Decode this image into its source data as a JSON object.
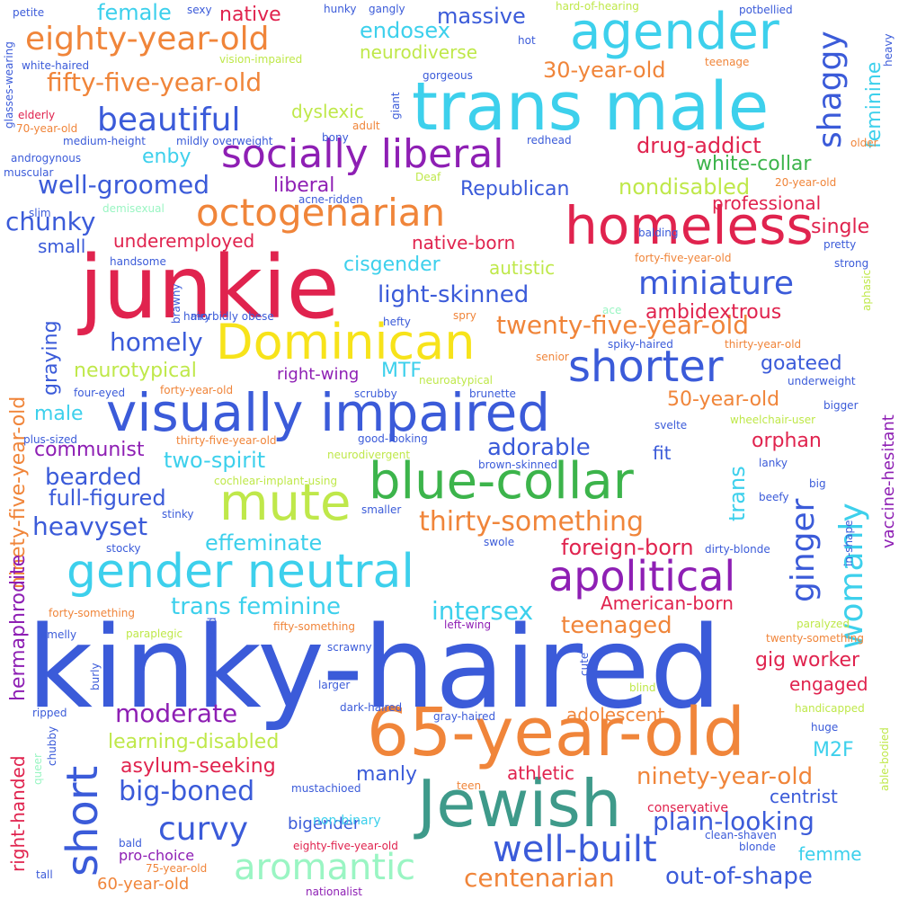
{
  "palette": {
    "blue": "#3b5bd9",
    "cyan": "#3dd0ec",
    "orange": "#f0853a",
    "purple": "#8e1fb4",
    "red": "#e0234e",
    "green": "#3cb44b",
    "lime": "#bfe84a",
    "yellow": "#f7e31a",
    "teal": "#3e9a8a",
    "mint": "#9af5c3",
    "background": "#ffffff"
  },
  "words": [
    {
      "text": "kinky-haired",
      "color": "blue"
    },
    {
      "text": "65-year-old",
      "color": "orange"
    },
    {
      "text": "trans male",
      "color": "cyan"
    },
    {
      "text": "junkie",
      "color": "red"
    },
    {
      "text": "visually impaired",
      "color": "blue"
    },
    {
      "text": "Jewish",
      "color": "teal"
    },
    {
      "text": "homeless",
      "color": "red"
    },
    {
      "text": "gender neutral",
      "color": "cyan"
    },
    {
      "text": "blue-collar",
      "color": "green"
    },
    {
      "text": "agender",
      "color": "cyan"
    },
    {
      "text": "Dominican",
      "color": "yellow"
    },
    {
      "text": "socially liberal",
      "color": "purple"
    },
    {
      "text": "mute",
      "color": "lime"
    },
    {
      "text": "shorter",
      "color": "blue"
    },
    {
      "text": "octogenarian",
      "color": "orange"
    },
    {
      "text": "apolitical",
      "color": "purple"
    },
    {
      "text": "short",
      "color": "blue"
    },
    {
      "text": "aromantic",
      "color": "mint"
    },
    {
      "text": "well-built",
      "color": "blue"
    },
    {
      "text": "eighty-year-old",
      "color": "orange"
    },
    {
      "text": "beautiful",
      "color": "blue"
    },
    {
      "text": "fifty-five-year-old",
      "color": "orange"
    },
    {
      "text": "miniature",
      "color": "blue"
    },
    {
      "text": "thirty-something",
      "color": "orange"
    },
    {
      "text": "twenty-five-year-old",
      "color": "orange"
    },
    {
      "text": "shaggy",
      "color": "blue"
    },
    {
      "text": "womanly",
      "color": "cyan"
    },
    {
      "text": "ginger",
      "color": "blue"
    },
    {
      "text": "curvy",
      "color": "blue"
    },
    {
      "text": "big-boned",
      "color": "blue"
    },
    {
      "text": "centenarian",
      "color": "orange"
    },
    {
      "text": "out-of-shape",
      "color": "blue"
    },
    {
      "text": "plain-looking",
      "color": "blue"
    },
    {
      "text": "ninety-year-old",
      "color": "orange"
    },
    {
      "text": "homely",
      "color": "blue"
    },
    {
      "text": "chunky",
      "color": "blue"
    },
    {
      "text": "moderate",
      "color": "purple"
    },
    {
      "text": "well-groomed",
      "color": "blue"
    },
    {
      "text": "trans feminine",
      "color": "cyan"
    },
    {
      "text": "intersex",
      "color": "cyan"
    },
    {
      "text": "effeminate",
      "color": "cyan"
    },
    {
      "text": "heavyset",
      "color": "blue"
    },
    {
      "text": "full-figured",
      "color": "blue"
    },
    {
      "text": "bearded",
      "color": "blue"
    },
    {
      "text": "two-spirit",
      "color": "cyan"
    },
    {
      "text": "adorable",
      "color": "blue"
    },
    {
      "text": "light-skinned",
      "color": "blue"
    },
    {
      "text": "teenaged",
      "color": "orange"
    },
    {
      "text": "foreign-born",
      "color": "red"
    },
    {
      "text": "American-born",
      "color": "red"
    },
    {
      "text": "30-year-old",
      "color": "orange"
    },
    {
      "text": "massive",
      "color": "blue"
    },
    {
      "text": "endosex",
      "color": "cyan"
    },
    {
      "text": "female",
      "color": "cyan"
    },
    {
      "text": "native",
      "color": "red"
    },
    {
      "text": "feminine",
      "color": "cyan"
    },
    {
      "text": "enby",
      "color": "cyan"
    },
    {
      "text": "drug-addict",
      "color": "red"
    },
    {
      "text": "white-collar",
      "color": "green"
    },
    {
      "text": "nondisabled",
      "color": "lime"
    },
    {
      "text": "Republican",
      "color": "blue"
    },
    {
      "text": "liberal",
      "color": "purple"
    },
    {
      "text": "professional",
      "color": "red"
    },
    {
      "text": "underemployed",
      "color": "red"
    },
    {
      "text": "native-born",
      "color": "red"
    },
    {
      "text": "single",
      "color": "red"
    },
    {
      "text": "cisgender",
      "color": "cyan"
    },
    {
      "text": "autistic",
      "color": "lime"
    },
    {
      "text": "small",
      "color": "blue"
    },
    {
      "text": "ambidextrous",
      "color": "red"
    },
    {
      "text": "graying",
      "color": "blue"
    },
    {
      "text": "neurotypical",
      "color": "lime"
    },
    {
      "text": "MTF",
      "color": "cyan"
    },
    {
      "text": "right-wing",
      "color": "purple"
    },
    {
      "text": "goateed",
      "color": "blue"
    },
    {
      "text": "50-year-old",
      "color": "orange"
    },
    {
      "text": "male",
      "color": "cyan"
    },
    {
      "text": "communist",
      "color": "purple"
    },
    {
      "text": "orphan",
      "color": "red"
    },
    {
      "text": "fit",
      "color": "blue"
    },
    {
      "text": "trans",
      "color": "cyan"
    },
    {
      "text": "vaccine-hesitant",
      "color": "purple"
    },
    {
      "text": "ninety-five-year-old",
      "color": "orange"
    },
    {
      "text": "hermaphrodite",
      "color": "purple"
    },
    {
      "text": "right-handed",
      "color": "red"
    },
    {
      "text": "gig worker",
      "color": "red"
    },
    {
      "text": "engaged",
      "color": "red"
    },
    {
      "text": "adolescent",
      "color": "orange"
    },
    {
      "text": "learning-disabled",
      "color": "lime"
    },
    {
      "text": "asylum-seeking",
      "color": "red"
    },
    {
      "text": "M2F",
      "color": "cyan"
    },
    {
      "text": "manly",
      "color": "blue"
    },
    {
      "text": "athletic",
      "color": "red"
    },
    {
      "text": "centrist",
      "color": "blue"
    },
    {
      "text": "bigender",
      "color": "blue"
    },
    {
      "text": "femme",
      "color": "cyan"
    },
    {
      "text": "60-year-old",
      "color": "orange"
    },
    {
      "text": "neurodiverse",
      "color": "lime"
    },
    {
      "text": "dyslexic",
      "color": "lime"
    },
    {
      "text": "conservative",
      "color": "red"
    },
    {
      "text": "non-binary",
      "color": "cyan"
    },
    {
      "text": "pro-choice",
      "color": "purple"
    },
    {
      "text": "nationalist",
      "color": "purple"
    },
    {
      "text": "eighty-five-year-old",
      "color": "red"
    },
    {
      "text": "75-year-old",
      "color": "orange"
    },
    {
      "text": "demisexual",
      "color": "mint"
    },
    {
      "text": "petite",
      "color": "blue"
    },
    {
      "text": "sexy",
      "color": "blue"
    },
    {
      "text": "hunky",
      "color": "blue"
    },
    {
      "text": "gangly",
      "color": "blue"
    },
    {
      "text": "hard-of-hearing",
      "color": "lime"
    },
    {
      "text": "potbellied",
      "color": "blue"
    },
    {
      "text": "heavy",
      "color": "blue"
    },
    {
      "text": "white-haired",
      "color": "blue"
    },
    {
      "text": "vision-impaired",
      "color": "lime"
    },
    {
      "text": "hot",
      "color": "blue"
    },
    {
      "text": "teenage",
      "color": "orange"
    },
    {
      "text": "gorgeous",
      "color": "blue"
    },
    {
      "text": "glasses-wearing",
      "color": "blue"
    },
    {
      "text": "elderly",
      "color": "red"
    },
    {
      "text": "70-year-old",
      "color": "orange"
    },
    {
      "text": "medium-height",
      "color": "blue"
    },
    {
      "text": "mildly overweight",
      "color": "blue"
    },
    {
      "text": "bony",
      "color": "blue"
    },
    {
      "text": "adult",
      "color": "orange"
    },
    {
      "text": "giant",
      "color": "blue"
    },
    {
      "text": "redhead",
      "color": "blue"
    },
    {
      "text": "older",
      "color": "orange"
    },
    {
      "text": "androgynous",
      "color": "blue"
    },
    {
      "text": "muscular",
      "color": "blue"
    },
    {
      "text": "Deaf",
      "color": "lime"
    },
    {
      "text": "acne-ridden",
      "color": "blue"
    },
    {
      "text": "20-year-old",
      "color": "orange"
    },
    {
      "text": "slim",
      "color": "blue"
    },
    {
      "text": "balding",
      "color": "blue"
    },
    {
      "text": "pretty",
      "color": "blue"
    },
    {
      "text": "forty-five-year-old",
      "color": "orange"
    },
    {
      "text": "strong",
      "color": "blue"
    },
    {
      "text": "handsome",
      "color": "blue"
    },
    {
      "text": "brawny",
      "color": "blue"
    },
    {
      "text": "hairy",
      "color": "blue"
    },
    {
      "text": "morbidly obese",
      "color": "blue"
    },
    {
      "text": "hefty",
      "color": "blue"
    },
    {
      "text": "ace",
      "color": "mint"
    },
    {
      "text": "spry",
      "color": "orange"
    },
    {
      "text": "aphasic",
      "color": "lime"
    },
    {
      "text": "spiky-haired",
      "color": "blue"
    },
    {
      "text": "thirty-year-old",
      "color": "orange"
    },
    {
      "text": "senior",
      "color": "orange"
    },
    {
      "text": "neuroatypical",
      "color": "lime"
    },
    {
      "text": "underweight",
      "color": "blue"
    },
    {
      "text": "four-eyed",
      "color": "blue"
    },
    {
      "text": "forty-year-old",
      "color": "orange"
    },
    {
      "text": "scrubby",
      "color": "blue"
    },
    {
      "text": "brunette",
      "color": "blue"
    },
    {
      "text": "bigger",
      "color": "blue"
    },
    {
      "text": "svelte",
      "color": "blue"
    },
    {
      "text": "wheelchair-user",
      "color": "lime"
    },
    {
      "text": "plus-sized",
      "color": "blue"
    },
    {
      "text": "thirty-five-year-old",
      "color": "orange"
    },
    {
      "text": "good-looking",
      "color": "blue"
    },
    {
      "text": "neurodivergent",
      "color": "lime"
    },
    {
      "text": "brown-skinned",
      "color": "blue"
    },
    {
      "text": "lanky",
      "color": "blue"
    },
    {
      "text": "cochlear-implant-using",
      "color": "lime"
    },
    {
      "text": "big",
      "color": "blue"
    },
    {
      "text": "beefy",
      "color": "blue"
    },
    {
      "text": "stinky",
      "color": "blue"
    },
    {
      "text": "smaller",
      "color": "blue"
    },
    {
      "text": "swole",
      "color": "blue"
    },
    {
      "text": "stocky",
      "color": "blue"
    },
    {
      "text": "dirty-blonde",
      "color": "blue"
    },
    {
      "text": "in-shape",
      "color": "blue"
    },
    {
      "text": "forty-something",
      "color": "orange"
    },
    {
      "text": "paralyzed",
      "color": "lime"
    },
    {
      "text": "fifty-something",
      "color": "orange"
    },
    {
      "text": "left-wing",
      "color": "purple"
    },
    {
      "text": "smelly",
      "color": "blue"
    },
    {
      "text": "paraplegic",
      "color": "lime"
    },
    {
      "text": "dreadlocked",
      "color": "blue"
    },
    {
      "text": "cute",
      "color": "blue"
    },
    {
      "text": "twenty-something",
      "color": "orange"
    },
    {
      "text": "burly",
      "color": "blue"
    },
    {
      "text": "scrawny",
      "color": "blue"
    },
    {
      "text": "larger",
      "color": "blue"
    },
    {
      "text": "blind",
      "color": "lime"
    },
    {
      "text": "handicapped",
      "color": "lime"
    },
    {
      "text": "dark-haired",
      "color": "blue"
    },
    {
      "text": "gray-haired",
      "color": "blue"
    },
    {
      "text": "ripped",
      "color": "blue"
    },
    {
      "text": "huge",
      "color": "blue"
    },
    {
      "text": "queer",
      "color": "mint"
    },
    {
      "text": "chubby",
      "color": "blue"
    },
    {
      "text": "able-bodied",
      "color": "lime"
    },
    {
      "text": "teen",
      "color": "orange"
    },
    {
      "text": "mustachioed",
      "color": "blue"
    },
    {
      "text": "clean-shaven",
      "color": "blue"
    },
    {
      "text": "bald",
      "color": "blue"
    },
    {
      "text": "blonde",
      "color": "blue"
    },
    {
      "text": "tall",
      "color": "blue"
    }
  ]
}
